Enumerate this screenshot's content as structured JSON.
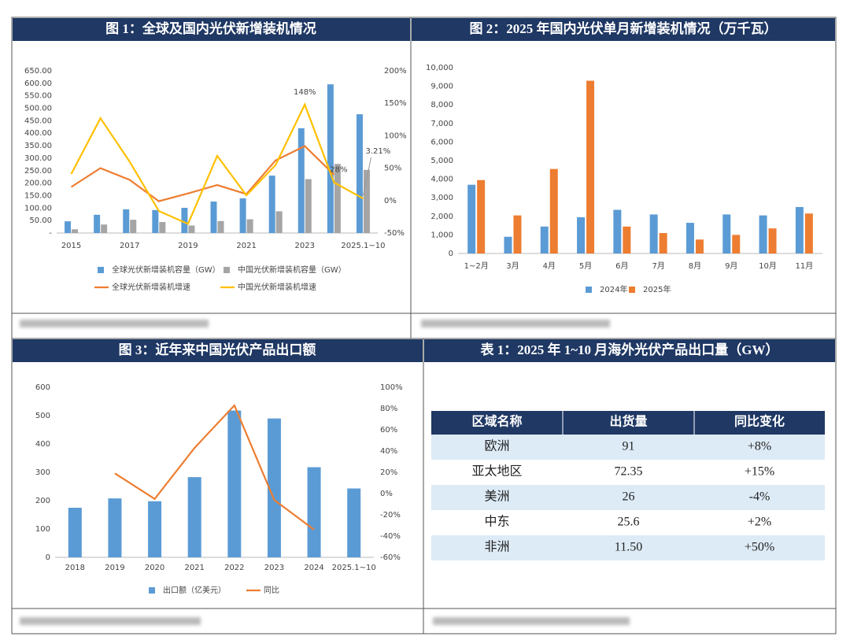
{
  "chart_data": [
    {
      "type": "bar",
      "title": "图 1：全球及国内光伏新增装机情况",
      "categories": [
        "2015",
        null,
        "2017",
        null,
        "2019",
        null,
        "2021",
        null,
        "2023",
        null,
        "2025.1~10"
      ],
      "series": [
        {
          "name": "全球光伏新增装机容量（GW）",
          "color": "#5b9bd5",
          "values": [
            47,
            73,
            95,
            92,
            101,
            126,
            139,
            230,
            420,
            596,
            476
          ]
        },
        {
          "name": "中国光伏新增装机容量（GW）",
          "color": "#a5a5a5",
          "values": [
            15,
            34,
            53,
            44,
            30,
            48,
            55,
            87,
            216,
            277,
            253
          ]
        },
        {
          "name": "全球光伏新增装机增速",
          "type": "line",
          "axis": "y2",
          "color": "#ed7d31",
          "values": [
            21,
            50,
            32,
            -1,
            11,
            24,
            10,
            62,
            84,
            40,
            null
          ]
        },
        {
          "name": "中国光伏新增装机增速",
          "type": "line",
          "axis": "y2",
          "color": "#ffc000",
          "values": [
            41,
            127,
            60,
            -16,
            -36,
            69,
            8,
            55,
            148,
            28,
            3.21
          ],
          "value_labels": [
            null,
            null,
            null,
            null,
            null,
            null,
            null,
            null,
            "148%",
            "28%",
            "3.21%"
          ]
        }
      ],
      "ylim": [
        0,
        650
      ],
      "yticks": [
        {
          "value": 0,
          "label": "-"
        },
        {
          "value": 50,
          "label": "50.00"
        },
        {
          "value": 100,
          "label": "100.00"
        },
        {
          "value": 150,
          "label": "150.00"
        },
        {
          "value": 200,
          "label": "200.00"
        },
        {
          "value": 250,
          "label": "250.00"
        },
        {
          "value": 300,
          "label": "300.00"
        },
        {
          "value": 350,
          "label": "350.00"
        },
        {
          "value": 400,
          "label": "400.00"
        },
        {
          "value": 450,
          "label": "450.00"
        },
        {
          "value": 500,
          "label": "500.00"
        },
        {
          "value": 550,
          "label": "550.00"
        },
        {
          "value": 600,
          "label": "600.00"
        },
        {
          "value": 650,
          "label": "650.00"
        }
      ],
      "y2lim": [
        -50,
        200
      ],
      "y2ticks": [
        {
          "value": -50,
          "label": "-50%"
        },
        {
          "value": 0,
          "label": "0%"
        },
        {
          "value": 50,
          "label": "50%"
        },
        {
          "value": 100,
          "label": "100%"
        },
        {
          "value": 150,
          "label": "150%"
        },
        {
          "value": 200,
          "label": "200%"
        }
      ]
    },
    {
      "type": "bar",
      "title": "图 2：2025 年国内光伏单月新增装机情况（万千瓦）",
      "categories": [
        "1~2月",
        "3月",
        "4月",
        "5月",
        "6月",
        "7月",
        "8月",
        "9月",
        "10月",
        "11月"
      ],
      "series": [
        {
          "name": "2024年",
          "color": "#5b9bd5",
          "values": [
            3700,
            900,
            1450,
            1950,
            2350,
            2100,
            1650,
            2100,
            2050,
            2500
          ]
        },
        {
          "name": "2025年",
          "color": "#ed7d31",
          "values": [
            3950,
            2050,
            4550,
            9300,
            1450,
            1100,
            750,
            1000,
            1350,
            2150
          ]
        }
      ],
      "ylim": [
        0,
        10000
      ],
      "yticks": [
        0,
        {
          "value": 1000,
          "label": "1,000"
        },
        {
          "value": 2000,
          "label": "2,000"
        },
        {
          "value": 3000,
          "label": "3,000"
        },
        {
          "value": 4000,
          "label": "4,000"
        },
        {
          "value": 5000,
          "label": "5,000"
        },
        {
          "value": 6000,
          "label": "6,000"
        },
        {
          "value": 7000,
          "label": "7,000"
        },
        {
          "value": 8000,
          "label": "8,000"
        },
        {
          "value": 9000,
          "label": "9,000"
        },
        {
          "value": 10000,
          "label": "10,000"
        }
      ]
    },
    {
      "type": "bar",
      "title": "图 3：近年来中国光伏产品出口额",
      "categories": [
        "2018",
        "2019",
        "2020",
        "2021",
        "2022",
        "2023",
        "2024",
        "2025.1~10"
      ],
      "series": [
        {
          "name": "出口额（亿美元）",
          "color": "#5b9bd5",
          "values": [
            175,
            208,
            198,
            283,
            518,
            490,
            318,
            243
          ]
        },
        {
          "name": "同比",
          "type": "line",
          "axis": "y2",
          "color": "#ed7d31",
          "values": [
            null,
            19,
            -5,
            43,
            83,
            -6,
            -34,
            null
          ]
        }
      ],
      "ylim": [
        0,
        600
      ],
      "yticks": [
        0,
        100,
        200,
        300,
        400,
        500,
        600
      ],
      "y2lim": [
        -60,
        100
      ],
      "y2ticks": [
        {
          "value": -60,
          "label": "-60%"
        },
        {
          "value": -40,
          "label": "-40%"
        },
        {
          "value": -20,
          "label": "-20%"
        },
        {
          "value": 0,
          "label": "0%"
        },
        {
          "value": 20,
          "label": "20%"
        },
        {
          "value": 40,
          "label": "40%"
        },
        {
          "value": 60,
          "label": "60%"
        },
        {
          "value": 80,
          "label": "80%"
        },
        {
          "value": 100,
          "label": "100%"
        }
      ]
    }
  ],
  "table": {
    "title": "表 1：2025 年 1~10 月海外光伏产品出口量（GW）",
    "header": [
      "区域名称",
      "出货量",
      "同比变化"
    ],
    "rows": [
      [
        "欧洲",
        "91",
        "+8%"
      ],
      [
        "亚太地区",
        "72.35",
        "+15%"
      ],
      [
        "美洲",
        "26",
        "-4%"
      ],
      [
        "中东",
        "25.6",
        "+2%"
      ],
      [
        "非洲",
        "11.50",
        "+50%"
      ]
    ]
  }
}
